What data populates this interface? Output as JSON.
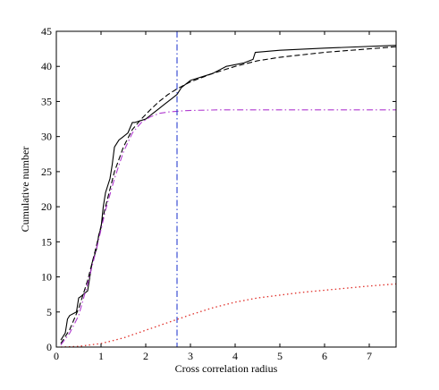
{
  "chart_data": {
    "type": "line",
    "title": "",
    "xlabel": "Cross correlation radius",
    "ylabel": "Cumulative number",
    "xlim": [
      0,
      7.6
    ],
    "ylim": [
      0,
      45
    ],
    "x_ticks": [
      0,
      1,
      2,
      3,
      4,
      5,
      6,
      7
    ],
    "y_ticks": [
      0,
      5,
      10,
      15,
      20,
      25,
      30,
      35,
      40,
      45
    ],
    "grid": false,
    "legend": "none",
    "vertical_line": {
      "x": 2.7,
      "color": "#2a3fd0"
    },
    "series": [
      {
        "style": "solid",
        "color": "#000000",
        "x": [
          0.1,
          0.2,
          0.25,
          0.3,
          0.45,
          0.5,
          0.55,
          0.6,
          0.7,
          0.75,
          0.8,
          0.9,
          0.95,
          1.0,
          1.05,
          1.1,
          1.2,
          1.25,
          1.3,
          1.4,
          1.5,
          1.6,
          1.7,
          1.75,
          2.0,
          2.1,
          2.2,
          2.3,
          2.4,
          2.5,
          2.6,
          2.7,
          2.8,
          3.0,
          3.5,
          3.8,
          4.2,
          4.4,
          4.45,
          5.0,
          6.0,
          7.6
        ],
        "y": [
          1,
          2,
          4,
          4.5,
          5,
          7,
          7.2,
          7.5,
          8,
          10,
          12,
          14,
          16,
          17,
          20,
          22,
          24,
          26,
          28.5,
          29.5,
          30,
          30.5,
          32,
          32,
          32.5,
          33,
          33.5,
          34,
          34.5,
          35,
          35.5,
          36,
          37,
          38,
          39,
          40,
          40.5,
          41,
          42,
          42.3,
          42.6,
          43
        ]
      },
      {
        "style": "dashed",
        "color": "#000000",
        "x": [
          0.1,
          0.3,
          0.5,
          0.7,
          0.9,
          1.1,
          1.3,
          1.5,
          1.7,
          1.9,
          2.1,
          2.3,
          2.5,
          2.7,
          3.0,
          3.5,
          4.0,
          4.5,
          5.0,
          6.0,
          7.0,
          7.6
        ],
        "y": [
          0.5,
          2.5,
          5.5,
          9.5,
          14.5,
          20,
          25,
          28.5,
          31,
          32.5,
          33.8,
          35,
          36,
          36.8,
          37.8,
          39,
          40,
          40.8,
          41.3,
          42,
          42.5,
          42.8
        ]
      },
      {
        "style": "dashdot",
        "color": "#b03ad0",
        "x": [
          0.1,
          0.3,
          0.5,
          0.7,
          0.9,
          1.1,
          1.3,
          1.5,
          1.7,
          1.9,
          2.1,
          2.3,
          2.5,
          2.7,
          2.9,
          3.2,
          3.6,
          4.0,
          5.0,
          6.0,
          7.6
        ],
        "y": [
          0.3,
          2,
          4.5,
          9,
          14,
          19.5,
          24,
          27.8,
          30.5,
          32,
          32.8,
          33.3,
          33.5,
          33.6,
          33.7,
          33.75,
          33.8,
          33.8,
          33.8,
          33.8,
          33.8
        ]
      },
      {
        "style": "dotted",
        "color": "#e0302a",
        "x": [
          0.1,
          0.5,
          1.0,
          1.5,
          2.0,
          2.5,
          3.0,
          3.5,
          4.0,
          4.5,
          5.0,
          5.5,
          6.0,
          6.5,
          7.0,
          7.6
        ],
        "y": [
          0,
          0.1,
          0.5,
          1.3,
          2.4,
          3.5,
          4.6,
          5.6,
          6.4,
          7.0,
          7.4,
          7.8,
          8.1,
          8.4,
          8.7,
          9.0
        ]
      }
    ]
  }
}
